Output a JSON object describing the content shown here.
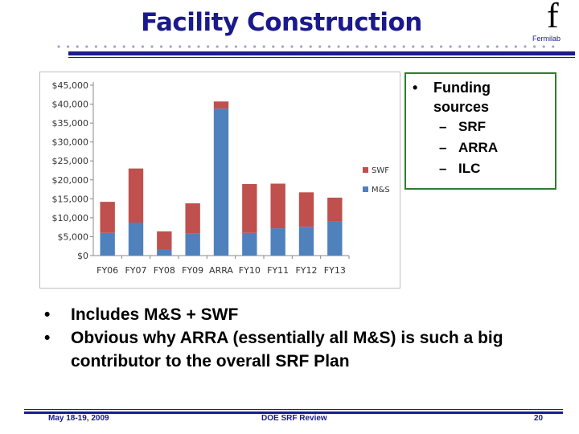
{
  "slide": {
    "title": "Facility Construction",
    "logo_glyph": "f",
    "logo_text": "Fermilab",
    "funding": {
      "bullet": "•",
      "heading": "Funding sources",
      "dash": "–",
      "items": [
        "SRF",
        "ARRA",
        "ILC"
      ]
    },
    "bullets": [
      "Includes M&S + SWF",
      "Obvious why ARRA (essentially all M&S) is such a big contributor to the overall SRF Plan"
    ],
    "bullet_glyph": "•",
    "footer": {
      "date": "May 18-19, 2009",
      "title": "DOE SRF Review",
      "page": "20"
    },
    "colors": {
      "title": "#1a1a8c",
      "swf": "#c0504d",
      "ms": "#4f81bd",
      "funding_border": "#2e7d2e"
    }
  },
  "chart_data": {
    "type": "bar",
    "stacked": true,
    "categories": [
      "FY06",
      "FY07",
      "FY08",
      "FY09",
      "ARRA",
      "FY10",
      "FY11",
      "FY12",
      "FY13"
    ],
    "series": [
      {
        "name": "M&S",
        "color": "#4f81bd",
        "values": [
          6000,
          8700,
          1500,
          5800,
          38800,
          6000,
          7200,
          7600,
          9000
        ]
      },
      {
        "name": "SWF",
        "color": "#c0504d",
        "values": [
          8200,
          14300,
          4900,
          8000,
          1900,
          12900,
          11800,
          9100,
          6300
        ]
      }
    ],
    "yticks": [
      "$0",
      "$5,000",
      "$10,000",
      "$15,000",
      "$20,000",
      "$25,000",
      "$30,000",
      "$35,000",
      "$40,000",
      "$45,000"
    ],
    "ylim": [
      0,
      45000
    ],
    "legend_position": "right",
    "legend_order": [
      "SWF",
      "M&S"
    ],
    "grid": false
  }
}
